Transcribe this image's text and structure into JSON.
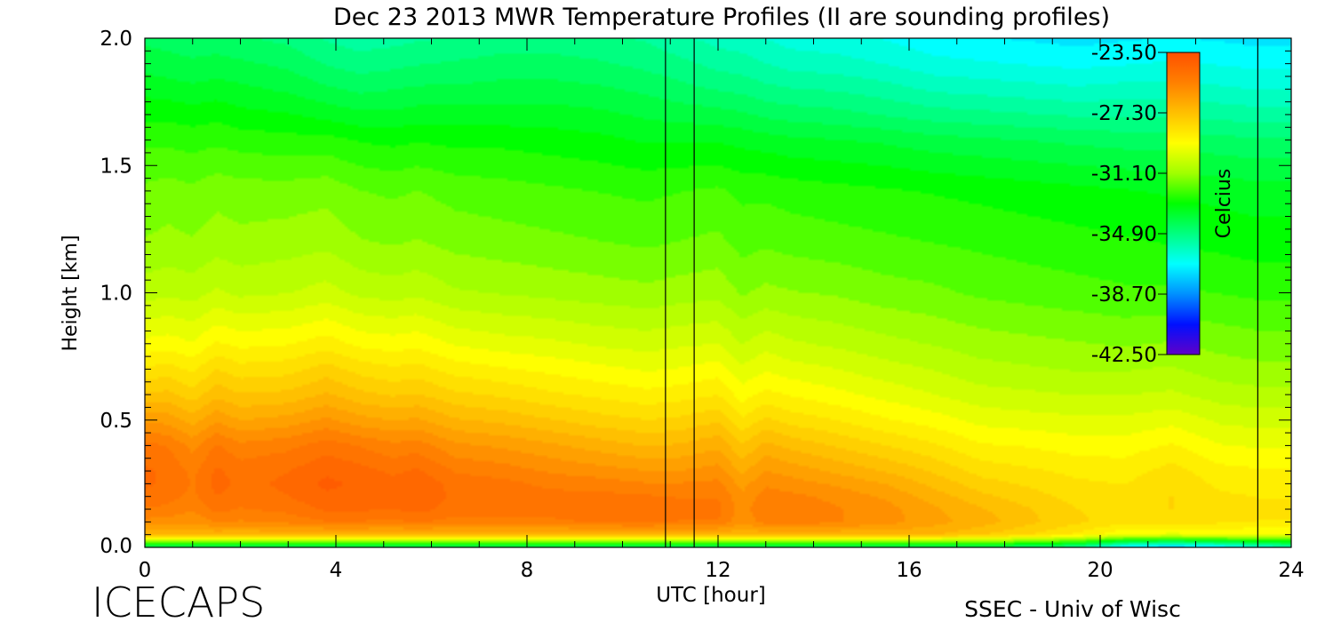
{
  "chart_data": {
    "type": "heatmap",
    "title": "Dec 23 2013 MWR Temperature Profiles (II are sounding profiles)",
    "xlabel": "UTC [hour]",
    "ylabel": "Height [km]",
    "xlim": [
      0,
      24
    ],
    "ylim": [
      0,
      2.0
    ],
    "x_ticks": [
      "0",
      "4",
      "8",
      "12",
      "16",
      "20",
      "24"
    ],
    "x_tick_values": [
      0,
      4,
      8,
      12,
      16,
      20,
      24
    ],
    "y_ticks": [
      "0.0",
      "0.5",
      "1.0",
      "1.5",
      "2.0"
    ],
    "y_tick_values": [
      0,
      0.5,
      1.0,
      1.5,
      2.0
    ],
    "sounding_times_utc": [
      10.9,
      11.5,
      23.3
    ],
    "colorbar": {
      "label": "Celcius",
      "range": [
        -42.5,
        -23.5
      ],
      "ticks": [
        "-23.50",
        "-27.30",
        "-31.10",
        "-34.90",
        "-38.70",
        "-42.50"
      ],
      "tick_values": [
        -23.5,
        -27.3,
        -31.1,
        -34.9,
        -38.7,
        -42.5
      ],
      "colors": [
        "#6000c8",
        "#0010ff",
        "#0090ff",
        "#00ffff",
        "#00ff80",
        "#00ff00",
        "#a0ff00",
        "#ffff00",
        "#ffc000",
        "#ff8000",
        "#ff5000"
      ]
    },
    "grid": false,
    "times_utc": [
      0,
      0.5,
      1,
      1.5,
      2,
      3,
      3.8,
      4.5,
      5.2,
      5.7,
      6.5,
      7.5,
      8.5,
      9.5,
      10.5,
      11.2,
      12,
      12.5,
      13,
      13.5,
      14.5,
      15.5,
      16.5,
      17.5,
      18.5,
      19.5,
      20.5,
      21.5,
      22.5,
      23.3,
      24
    ],
    "heights_km": [
      0,
      0.025,
      0.05,
      0.1,
      0.15,
      0.2,
      0.25,
      0.3,
      0.4,
      0.5,
      0.6,
      0.7,
      0.8,
      1.0,
      1.2,
      1.4,
      1.6,
      1.7,
      1.8,
      1.9,
      2.0
    ],
    "temperature_profiles_c": [
      [
        -34.9,
        -31.0,
        -27.0,
        -25.8,
        -25.2,
        -24.8,
        -24.6,
        -24.6,
        -25.0,
        -26.2,
        -27.4,
        -28.4,
        -29.3,
        -30.6,
        -31.3,
        -31.7,
        -32.4,
        -32.9,
        -33.4,
        -33.9,
        -34.3
      ],
      [
        -34.9,
        -31.0,
        -27.0,
        -25.9,
        -25.3,
        -25.0,
        -24.8,
        -24.8,
        -25.2,
        -26.3,
        -27.4,
        -28.3,
        -29.2,
        -30.5,
        -31.2,
        -31.6,
        -32.4,
        -32.9,
        -33.5,
        -34.0,
        -34.4
      ],
      [
        -34.9,
        -31.0,
        -27.0,
        -26.0,
        -25.6,
        -25.3,
        -25.2,
        -25.3,
        -25.8,
        -26.8,
        -27.8,
        -28.6,
        -29.4,
        -30.6,
        -31.3,
        -31.7,
        -32.5,
        -33.0,
        -33.6,
        -34.1,
        -34.5
      ],
      [
        -34.9,
        -31.0,
        -27.0,
        -25.6,
        -25.0,
        -24.7,
        -24.5,
        -24.6,
        -25.1,
        -26.2,
        -27.2,
        -28.0,
        -28.9,
        -30.3,
        -31.1,
        -31.5,
        -32.4,
        -32.9,
        -33.5,
        -34.0,
        -34.5
      ],
      [
        -34.9,
        -31.0,
        -27.0,
        -25.7,
        -25.2,
        -24.9,
        -24.8,
        -24.9,
        -25.5,
        -26.6,
        -27.5,
        -28.3,
        -29.1,
        -30.5,
        -31.2,
        -31.6,
        -32.5,
        -33.1,
        -33.6,
        -34.1,
        -34.6
      ],
      [
        -34.9,
        -31.0,
        -27.0,
        -25.5,
        -25.0,
        -24.7,
        -24.6,
        -24.7,
        -25.3,
        -26.4,
        -27.4,
        -28.2,
        -29.0,
        -30.4,
        -31.1,
        -31.6,
        -32.6,
        -33.2,
        -33.8,
        -34.3,
        -34.8
      ],
      [
        -34.9,
        -31.0,
        -27.0,
        -25.2,
        -24.6,
        -24.3,
        -24.1,
        -24.3,
        -24.9,
        -26.0,
        -27.0,
        -27.8,
        -28.7,
        -30.2,
        -31.0,
        -31.5,
        -32.6,
        -33.4,
        -34.1,
        -34.7,
        -35.2
      ],
      [
        -34.9,
        -31.0,
        -27.0,
        -25.2,
        -24.6,
        -24.4,
        -24.3,
        -24.5,
        -25.2,
        -26.4,
        -27.4,
        -28.2,
        -29.1,
        -30.5,
        -31.3,
        -31.8,
        -32.8,
        -33.6,
        -34.3,
        -34.9,
        -35.4
      ],
      [
        -34.9,
        -31.0,
        -27.0,
        -25.3,
        -24.7,
        -24.5,
        -24.5,
        -24.8,
        -25.5,
        -26.6,
        -27.6,
        -28.4,
        -29.2,
        -30.6,
        -31.4,
        -31.9,
        -32.9,
        -33.6,
        -34.2,
        -34.8,
        -35.3
      ],
      [
        -34.9,
        -31.0,
        -27.0,
        -25.1,
        -24.5,
        -24.3,
        -24.3,
        -24.6,
        -25.4,
        -26.5,
        -27.5,
        -28.3,
        -29.1,
        -30.5,
        -31.3,
        -31.8,
        -32.8,
        -33.5,
        -34.1,
        -34.7,
        -35.2
      ],
      [
        -34.9,
        -31.0,
        -27.0,
        -25.4,
        -24.9,
        -24.8,
        -24.9,
        -25.2,
        -26.0,
        -27.0,
        -27.9,
        -28.7,
        -29.5,
        -30.8,
        -31.5,
        -32.0,
        -32.9,
        -33.5,
        -34.1,
        -34.6,
        -35.1
      ],
      [
        -34.9,
        -31.0,
        -27.0,
        -25.3,
        -24.9,
        -24.9,
        -25.0,
        -25.4,
        -26.2,
        -27.2,
        -28.1,
        -28.9,
        -29.7,
        -30.9,
        -31.6,
        -32.1,
        -32.9,
        -33.5,
        -34.0,
        -34.5,
        -34.9
      ],
      [
        -34.9,
        -31.0,
        -27.0,
        -25.3,
        -24.9,
        -25.0,
        -25.3,
        -25.7,
        -26.5,
        -27.5,
        -28.4,
        -29.1,
        -29.8,
        -31.0,
        -31.7,
        -32.2,
        -33.0,
        -33.5,
        -34.0,
        -34.5,
        -34.9
      ],
      [
        -34.9,
        -31.0,
        -27.0,
        -25.1,
        -24.8,
        -25.0,
        -25.4,
        -25.9,
        -26.8,
        -27.8,
        -28.6,
        -29.3,
        -30.0,
        -31.1,
        -31.8,
        -32.3,
        -33.1,
        -33.6,
        -34.1,
        -34.6,
        -35.0
      ],
      [
        -34.9,
        -31.0,
        -27.0,
        -25.0,
        -24.8,
        -25.1,
        -25.6,
        -26.1,
        -27.1,
        -28.0,
        -28.8,
        -29.5,
        -30.1,
        -31.2,
        -31.9,
        -32.4,
        -33.3,
        -33.8,
        -34.3,
        -34.8,
        -35.2
      ],
      [
        -34.9,
        -31.0,
        -27.0,
        -25.2,
        -25.0,
        -25.2,
        -25.6,
        -26.1,
        -27.0,
        -27.9,
        -28.7,
        -29.4,
        -30.0,
        -31.1,
        -31.8,
        -32.3,
        -33.3,
        -33.9,
        -34.5,
        -35.0,
        -35.5
      ],
      [
        -34.9,
        -31.0,
        -27.0,
        -25.2,
        -25.0,
        -25.2,
        -25.5,
        -25.9,
        -26.7,
        -27.6,
        -28.5,
        -29.2,
        -29.9,
        -31.0,
        -31.7,
        -32.2,
        -33.3,
        -34.0,
        -34.7,
        -35.3,
        -35.8
      ],
      [
        -34.9,
        -31.0,
        -27.0,
        -26.0,
        -25.9,
        -26.0,
        -26.3,
        -26.7,
        -27.5,
        -28.4,
        -29.2,
        -29.8,
        -30.4,
        -31.4,
        -32.0,
        -32.4,
        -33.4,
        -34.1,
        -34.8,
        -35.4,
        -35.9
      ],
      [
        -34.9,
        -31.0,
        -27.0,
        -25.4,
        -25.2,
        -25.4,
        -25.7,
        -26.1,
        -26.9,
        -27.9,
        -28.8,
        -29.5,
        -30.1,
        -31.2,
        -31.9,
        -32.4,
        -33.5,
        -34.3,
        -35.0,
        -35.6,
        -36.1
      ],
      [
        -34.9,
        -31.0,
        -27.0,
        -25.3,
        -25.2,
        -25.5,
        -25.9,
        -26.3,
        -27.2,
        -28.2,
        -29.0,
        -29.7,
        -30.3,
        -31.3,
        -32.0,
        -32.5,
        -33.6,
        -34.4,
        -35.1,
        -35.8,
        -36.3
      ],
      [
        -34.9,
        -31.0,
        -27.0,
        -25.6,
        -25.6,
        -25.8,
        -26.2,
        -26.7,
        -27.6,
        -28.5,
        -29.3,
        -29.9,
        -30.5,
        -31.4,
        -32.1,
        -32.6,
        -33.7,
        -34.5,
        -35.2,
        -35.9,
        -36.4
      ],
      [
        -34.9,
        -31.0,
        -27.0,
        -25.9,
        -25.9,
        -26.2,
        -26.6,
        -27.1,
        -28.0,
        -28.9,
        -29.6,
        -30.2,
        -30.7,
        -31.6,
        -32.2,
        -32.7,
        -33.8,
        -34.7,
        -35.4,
        -36.1,
        -36.6
      ],
      [
        -34.9,
        -31.0,
        -27.0,
        -26.4,
        -26.5,
        -26.8,
        -27.2,
        -27.6,
        -28.4,
        -29.2,
        -29.9,
        -30.4,
        -30.9,
        -31.7,
        -32.3,
        -32.8,
        -34.0,
        -34.9,
        -35.7,
        -36.4,
        -36.9
      ],
      [
        -34.9,
        -31.0,
        -27.5,
        -26.8,
        -27.0,
        -27.4,
        -27.8,
        -28.2,
        -28.9,
        -29.6,
        -30.2,
        -30.7,
        -31.1,
        -31.9,
        -32.4,
        -32.9,
        -34.1,
        -35.0,
        -35.8,
        -36.5,
        -37.0
      ],
      [
        -34.9,
        -31.5,
        -28.0,
        -27.4,
        -27.5,
        -27.8,
        -28.1,
        -28.4,
        -29.0,
        -29.7,
        -30.3,
        -30.8,
        -31.2,
        -32.0,
        -32.5,
        -33.0,
        -34.2,
        -35.1,
        -35.9,
        -36.6,
        -37.1
      ],
      [
        -35.5,
        -32.0,
        -28.6,
        -27.9,
        -28.0,
        -28.2,
        -28.4,
        -28.6,
        -29.2,
        -29.8,
        -30.4,
        -30.9,
        -31.3,
        -32.1,
        -32.6,
        -33.1,
        -34.3,
        -35.2,
        -36.0,
        -36.7,
        -37.2
      ],
      [
        -37.5,
        -33.5,
        -29.4,
        -28.3,
        -28.2,
        -28.3,
        -28.5,
        -28.7,
        -29.2,
        -29.8,
        -30.4,
        -30.9,
        -31.4,
        -32.2,
        -32.7,
        -33.2,
        -34.4,
        -35.2,
        -35.9,
        -36.6,
        -37.1
      ],
      [
        -38.0,
        -33.8,
        -29.6,
        -28.2,
        -28.0,
        -28.0,
        -28.1,
        -28.3,
        -28.9,
        -29.6,
        -30.3,
        -30.8,
        -31.3,
        -32.2,
        -32.8,
        -33.3,
        -34.4,
        -35.2,
        -35.9,
        -36.5,
        -37.0
      ],
      [
        -37.5,
        -33.5,
        -29.4,
        -28.4,
        -28.3,
        -28.4,
        -28.6,
        -28.8,
        -29.4,
        -30.0,
        -30.6,
        -31.1,
        -31.5,
        -32.3,
        -32.9,
        -33.4,
        -34.5,
        -35.3,
        -36.0,
        -36.6,
        -37.1
      ],
      [
        -36.5,
        -33.0,
        -29.5,
        -28.5,
        -28.4,
        -28.5,
        -28.7,
        -28.9,
        -29.5,
        -30.1,
        -30.7,
        -31.2,
        -31.6,
        -32.4,
        -33.0,
        -33.5,
        -34.6,
        -35.4,
        -36.1,
        -36.7,
        -37.2
      ],
      [
        -36.0,
        -32.8,
        -29.5,
        -28.5,
        -28.4,
        -28.5,
        -28.7,
        -28.9,
        -29.5,
        -30.1,
        -30.7,
        -31.2,
        -31.6,
        -32.4,
        -33.0,
        -33.5,
        -34.6,
        -35.4,
        -36.1,
        -36.7,
        -37.2
      ]
    ]
  },
  "footer": {
    "left_label": "ICECAPS",
    "right_label": "SSEC - Univ of Wisc"
  }
}
